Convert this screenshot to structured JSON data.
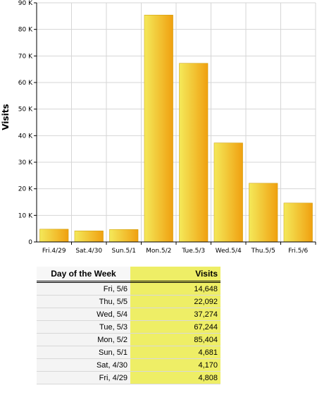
{
  "chart_data": {
    "type": "bar",
    "categories": [
      "Fri.4/29",
      "Sat.4/30",
      "Sun.5/1",
      "Mon.5/2",
      "Tue.5/3",
      "Wed.5/4",
      "Thu.5/5",
      "Fri.5/6"
    ],
    "values": [
      4808,
      4170,
      4681,
      85404,
      67244,
      37274,
      22092,
      14648
    ],
    "ylabel": "Visits",
    "xlabel": "",
    "ylim": [
      0,
      90000
    ],
    "yticks": [
      "0",
      "10 K",
      "20 K",
      "30 K",
      "40 K",
      "50 K",
      "60 K",
      "70 K",
      "80 K",
      "90 K"
    ],
    "grid": true,
    "bar_color_light": "#f4e95a",
    "bar_color_dark": "#f0a010"
  },
  "table": {
    "headers": {
      "day": "Day of the Week",
      "visits": "Visits"
    },
    "rows": [
      {
        "day": "Fri, 5/6",
        "visits": "14,648"
      },
      {
        "day": "Thu, 5/5",
        "visits": "22,092"
      },
      {
        "day": "Wed, 5/4",
        "visits": "37,274"
      },
      {
        "day": "Tue, 5/3",
        "visits": "67,244"
      },
      {
        "day": "Mon, 5/2",
        "visits": "85,404"
      },
      {
        "day": "Sun, 5/1",
        "visits": "4,681"
      },
      {
        "day": "Sat, 4/30",
        "visits": "4,170"
      },
      {
        "day": "Fri, 4/29",
        "visits": "4,808"
      }
    ],
    "highlight_color": "#eeee66"
  }
}
